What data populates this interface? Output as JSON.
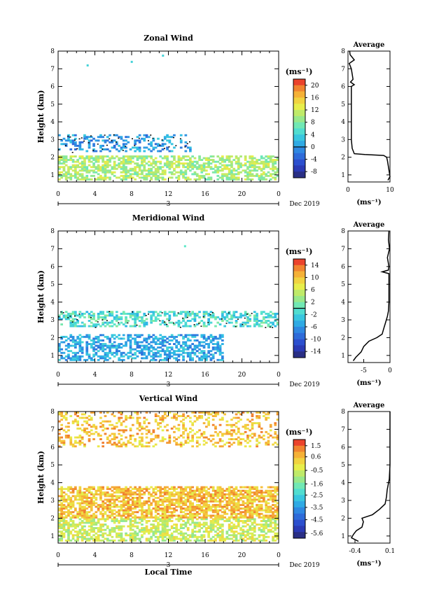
{
  "figure": {
    "date_label": "Dec 2019",
    "day_label": "3",
    "xlabel_bottom": "Local Time",
    "unit_label": "(ms⁻¹)",
    "avg_title": "Average"
  },
  "chart_data": [
    {
      "type": "heatmap",
      "title": "Zonal Wind",
      "xlabel": "",
      "ylabel": "Height (km)",
      "x_ticks": [
        "0",
        "4",
        "8",
        "12",
        "16",
        "20",
        "0"
      ],
      "x_tick_hours": [
        0,
        4,
        8,
        12,
        16,
        20,
        24
      ],
      "xlim": [
        0,
        24
      ],
      "y_ticks": [
        1,
        2,
        3,
        4,
        5,
        6,
        7,
        8
      ],
      "ylim": [
        0.6,
        8.0
      ],
      "colorbar": {
        "ticks": [
          20,
          16,
          12,
          8,
          4,
          0,
          -4,
          -8
        ],
        "range": [
          -10,
          22
        ],
        "zero_line": 0
      },
      "regions": [
        {
          "desc": "near-surface",
          "t": [
            0,
            24
          ],
          "z": [
            0.7,
            2.1
          ],
          "value": 10,
          "density": 0.6
        },
        {
          "desc": "upper layer",
          "t": [
            0,
            14.5
          ],
          "z": [
            2.3,
            3.3
          ],
          "value": 0,
          "density": 0.35
        }
      ],
      "isolated_points": [
        {
          "t": 3.1,
          "z": 7.25,
          "v": 4
        },
        {
          "t": 7.9,
          "z": 7.45,
          "v": 4
        },
        {
          "t": 11.3,
          "z": 7.8,
          "v": 4
        }
      ],
      "average_profile": {
        "xlabel": "(ms⁻¹)",
        "x_ticks": [
          "0",
          "10"
        ],
        "xlim": [
          0,
          10
        ],
        "ylim": [
          0.6,
          8.0
        ],
        "z": [
          0.7,
          0.9,
          1.2,
          1.5,
          1.8,
          2.0,
          2.1,
          2.15,
          2.2,
          2.5,
          3.0,
          4.0,
          5.0,
          6.0,
          6.1,
          6.25,
          6.4,
          7.0,
          7.3,
          7.5,
          7.8,
          8.0
        ],
        "v": [
          9.5,
          10.0,
          9.8,
          9.6,
          9.4,
          9.2,
          8.5,
          4.0,
          1.5,
          1.0,
          0.8,
          0.8,
          0.8,
          0.8,
          1.5,
          0.6,
          1.2,
          0.8,
          0.3,
          1.5,
          0.5,
          0.4
        ]
      }
    },
    {
      "type": "heatmap",
      "title": "Meridional Wind",
      "xlabel": "",
      "ylabel": "Height (km)",
      "x_ticks": [
        "0",
        "4",
        "8",
        "12",
        "16",
        "20",
        "0"
      ],
      "x_tick_hours": [
        0,
        4,
        8,
        12,
        16,
        20,
        24
      ],
      "xlim": [
        0,
        24
      ],
      "y_ticks": [
        1,
        2,
        3,
        4,
        5,
        6,
        7,
        8
      ],
      "ylim": [
        0.6,
        8.0
      ],
      "colorbar": {
        "ticks": [
          14,
          10,
          6,
          2,
          -2,
          -6,
          -10,
          -14
        ],
        "range": [
          -16,
          16
        ],
        "zero_line": 0
      },
      "regions": [
        {
          "desc": "near-surface",
          "t": [
            0,
            18
          ],
          "z": [
            0.7,
            2.2
          ],
          "value": -5,
          "density": 0.55
        },
        {
          "desc": "upper layer",
          "t": [
            0,
            24
          ],
          "z": [
            2.6,
            3.5
          ],
          "value": -1,
          "density": 0.45
        }
      ],
      "isolated_points": [
        {
          "t": 13.7,
          "z": 7.2,
          "v": 0
        }
      ],
      "average_profile": {
        "xlabel": "(ms⁻¹)",
        "x_ticks": [
          "-5",
          "0"
        ],
        "xlim": [
          -8,
          0
        ],
        "ylim": [
          0.6,
          8.0
        ],
        "z": [
          0.7,
          0.9,
          1.2,
          1.5,
          1.8,
          2.0,
          2.2,
          2.5,
          2.8,
          3.2,
          3.5,
          4.0,
          5.0,
          5.6,
          5.7,
          5.8,
          6.0,
          6.5,
          7.0,
          7.5,
          8.0
        ],
        "v": [
          -7.0,
          -6.5,
          -5.5,
          -5.0,
          -4.0,
          -2.5,
          -1.5,
          -1.2,
          -0.9,
          -0.5,
          -0.3,
          -0.2,
          -0.2,
          -0.2,
          -1.5,
          -0.3,
          -0.2,
          -0.5,
          -0.1,
          -0.3,
          -0.2
        ]
      }
    },
    {
      "type": "heatmap",
      "title": "Vertical Wind",
      "xlabel": "Local Time",
      "ylabel": "Height (km)",
      "x_ticks": [
        "0",
        "4",
        "8",
        "12",
        "16",
        "20",
        "0"
      ],
      "x_tick_hours": [
        0,
        4,
        8,
        12,
        16,
        20,
        24
      ],
      "xlim": [
        0,
        24
      ],
      "y_ticks": [
        1,
        2,
        3,
        4,
        5,
        6,
        7,
        8
      ],
      "ylim": [
        0.6,
        8.0
      ],
      "colorbar": {
        "ticks": [
          1.5,
          0.6,
          -0.5,
          -1.6,
          -2.5,
          -3.5,
          -4.5,
          -5.6
        ],
        "range": [
          -6.0,
          2.0
        ],
        "zero_line": null
      },
      "regions": [
        {
          "desc": "boundary layer",
          "t": [
            0,
            24
          ],
          "z": [
            0.7,
            2.0
          ],
          "value": -0.6,
          "density": 0.6
        },
        {
          "desc": "cloud layer",
          "t": [
            0,
            24
          ],
          "z": [
            2.0,
            3.8
          ],
          "value": 0.5,
          "density": 0.7
        },
        {
          "desc": "upper sparse",
          "t": [
            0,
            24
          ],
          "z": [
            6.0,
            7.9
          ],
          "value": 0.5,
          "density": 0.3
        }
      ],
      "isolated_points": [],
      "average_profile": {
        "xlabel": "(ms⁻¹)",
        "x_ticks": [
          "-0.4",
          "0.1"
        ],
        "xlim": [
          -0.5,
          0.1
        ],
        "ylim": [
          0.6,
          8.0
        ],
        "z": [
          0.7,
          0.9,
          1.1,
          1.3,
          1.5,
          1.8,
          2.0,
          2.2,
          2.5,
          2.8,
          3.2,
          3.6,
          3.8,
          4.2,
          5.0,
          6.0,
          7.0,
          8.0
        ],
        "v": [
          -0.35,
          -0.45,
          -0.42,
          -0.38,
          -0.3,
          -0.28,
          -0.3,
          -0.15,
          -0.05,
          0.03,
          0.05,
          0.06,
          0.07,
          0.09,
          0.1,
          0.1,
          0.1,
          0.1
        ]
      }
    }
  ]
}
